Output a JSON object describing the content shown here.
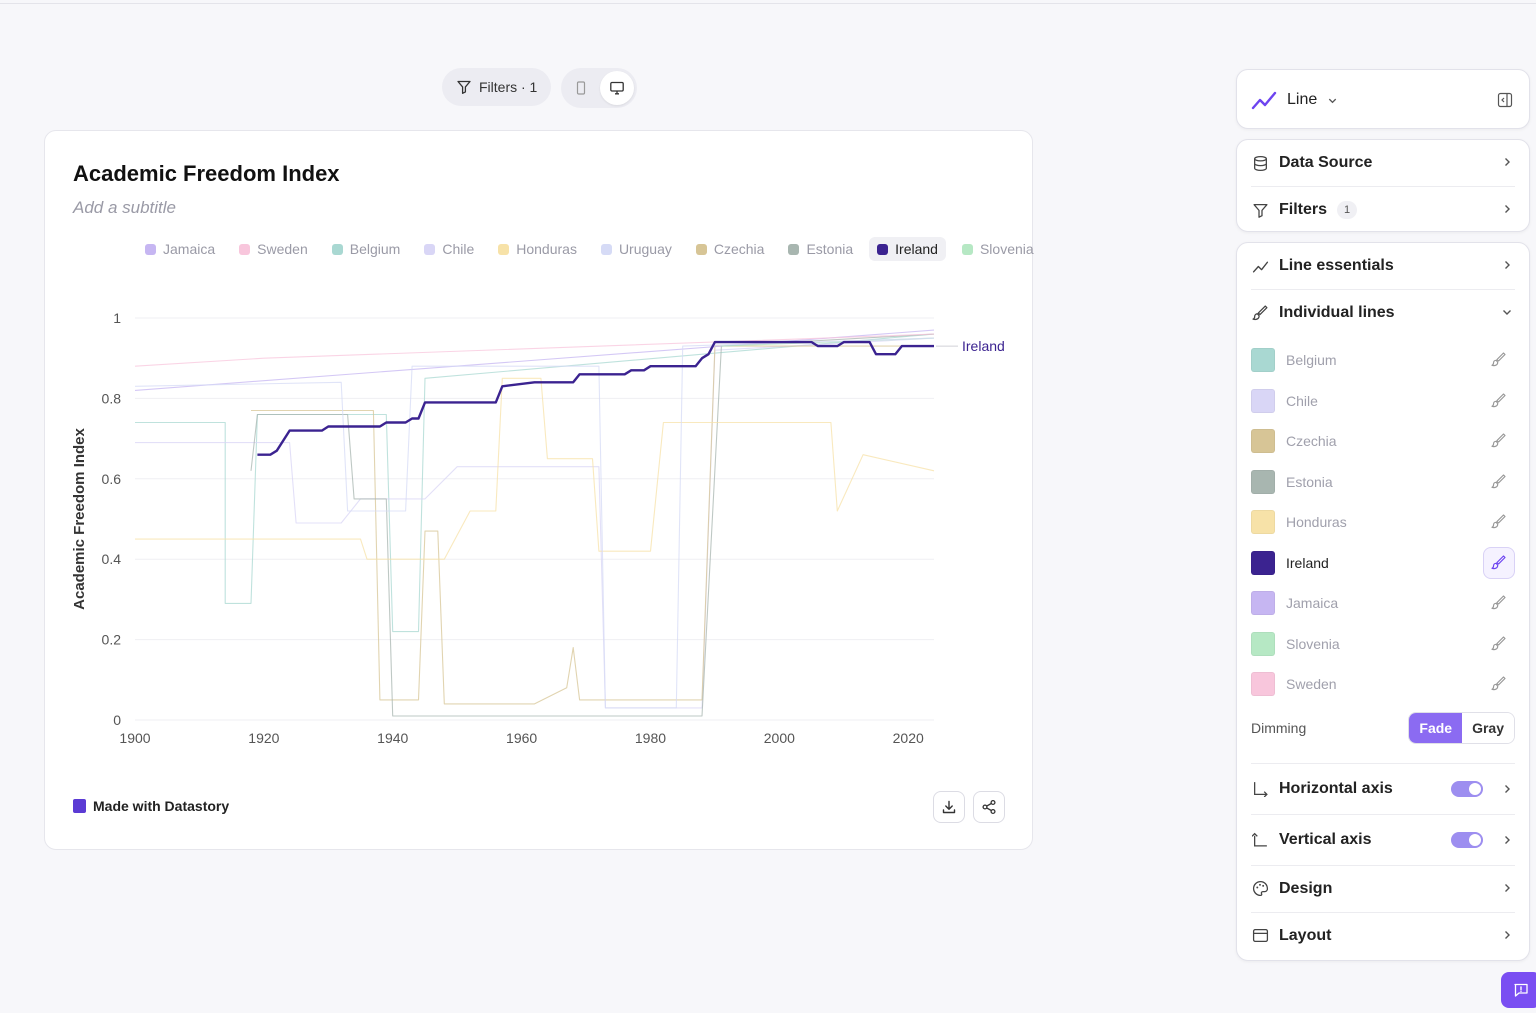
{
  "toolbar": {
    "filters_label": "Filters · 1"
  },
  "chart": {
    "title": "Academic Freedom Index",
    "subtitle_placeholder": "Add a subtitle",
    "footer_brand": "Made with Datastory"
  },
  "legend": [
    {
      "name": "Jamaica",
      "color": "#c6b6f2",
      "active": false
    },
    {
      "name": "Sweden",
      "color": "#f8c6dc",
      "active": false
    },
    {
      "name": "Belgium",
      "color": "#a9d8d2",
      "active": false
    },
    {
      "name": "Chile",
      "color": "#d9d6f6",
      "active": false
    },
    {
      "name": "Honduras",
      "color": "#f7e2a8",
      "active": false
    },
    {
      "name": "Uruguay",
      "color": "#d6dbf6",
      "active": false
    },
    {
      "name": "Czechia",
      "color": "#d7c596",
      "active": false
    },
    {
      "name": "Estonia",
      "color": "#a8b6b0",
      "active": false
    },
    {
      "name": "Ireland",
      "color": "#3b2390",
      "active": true
    },
    {
      "name": "Slovenia",
      "color": "#b6e8c4",
      "active": false
    }
  ],
  "chart_data": {
    "type": "line",
    "title": "Academic Freedom Index",
    "ylabel": "Academic Freedom Index",
    "xlabel": "",
    "xlim": [
      1900,
      2024
    ],
    "ylim": [
      0,
      1
    ],
    "x_ticks": [
      1900,
      1920,
      1940,
      1960,
      1980,
      2000,
      2020
    ],
    "y_ticks": [
      0,
      0.2,
      0.4,
      0.6,
      0.8,
      1
    ],
    "y_tick_labels": [
      "0",
      "0.2",
      "0.4",
      "0.6",
      "0.8",
      "1"
    ],
    "highlight_label": "Ireland",
    "series": [
      {
        "name": "Ireland",
        "color": "#3b2390",
        "highlight": true,
        "points": [
          [
            1919,
            0.66
          ],
          [
            1921,
            0.66
          ],
          [
            1922,
            0.67
          ],
          [
            1924,
            0.72
          ],
          [
            1929,
            0.72
          ],
          [
            1930,
            0.73
          ],
          [
            1938,
            0.73
          ],
          [
            1939,
            0.74
          ],
          [
            1942,
            0.74
          ],
          [
            1943,
            0.75
          ],
          [
            1944,
            0.75
          ],
          [
            1945,
            0.79
          ],
          [
            1956,
            0.79
          ],
          [
            1957,
            0.83
          ],
          [
            1962,
            0.84
          ],
          [
            1968,
            0.84
          ],
          [
            1969,
            0.86
          ],
          [
            1976,
            0.86
          ],
          [
            1977,
            0.87
          ],
          [
            1979,
            0.87
          ],
          [
            1980,
            0.88
          ],
          [
            1987,
            0.88
          ],
          [
            1988,
            0.9
          ],
          [
            1989,
            0.91
          ],
          [
            1990,
            0.94
          ],
          [
            2005,
            0.94
          ],
          [
            2006,
            0.93
          ],
          [
            2009,
            0.93
          ],
          [
            2010,
            0.94
          ],
          [
            2014,
            0.94
          ],
          [
            2015,
            0.91
          ],
          [
            2018,
            0.91
          ],
          [
            2019,
            0.93
          ],
          [
            2024,
            0.93
          ]
        ]
      },
      {
        "name": "Belgium",
        "color": "#a9d8d2",
        "highlight": false,
        "points": [
          [
            1900,
            0.74
          ],
          [
            1914,
            0.74
          ],
          [
            1914,
            0.29
          ],
          [
            1918,
            0.29
          ],
          [
            1919,
            0.76
          ],
          [
            1939,
            0.76
          ],
          [
            1940,
            0.22
          ],
          [
            1944,
            0.22
          ],
          [
            1945,
            0.85
          ],
          [
            2024,
            0.96
          ]
        ]
      },
      {
        "name": "Chile",
        "color": "#d9d6f6",
        "highlight": false,
        "points": [
          [
            1900,
            0.69
          ],
          [
            1924,
            0.69
          ],
          [
            1925,
            0.49
          ],
          [
            1932,
            0.49
          ],
          [
            1935,
            0.55
          ],
          [
            1945,
            0.55
          ],
          [
            1950,
            0.63
          ],
          [
            1972,
            0.63
          ],
          [
            1973,
            0.03
          ],
          [
            1988,
            0.03
          ],
          [
            1990,
            0.92
          ],
          [
            2024,
            0.95
          ]
        ]
      },
      {
        "name": "Czechia",
        "color": "#d7c596",
        "highlight": false,
        "points": [
          [
            1918,
            0.77
          ],
          [
            1937,
            0.77
          ],
          [
            1938,
            0.05
          ],
          [
            1944,
            0.05
          ],
          [
            1945,
            0.47
          ],
          [
            1947,
            0.47
          ],
          [
            1948,
            0.04
          ],
          [
            1962,
            0.04
          ],
          [
            1967,
            0.08
          ],
          [
            1968,
            0.18
          ],
          [
            1969,
            0.05
          ],
          [
            1988,
            0.05
          ],
          [
            1990,
            0.93
          ],
          [
            2024,
            0.93
          ]
        ]
      },
      {
        "name": "Estonia",
        "color": "#a8b6b0",
        "highlight": false,
        "points": [
          [
            1918,
            0.62
          ],
          [
            1919,
            0.76
          ],
          [
            1933,
            0.76
          ],
          [
            1934,
            0.55
          ],
          [
            1939,
            0.55
          ],
          [
            1940,
            0.01
          ],
          [
            1988,
            0.01
          ],
          [
            1991,
            0.93
          ],
          [
            2024,
            0.96
          ]
        ]
      },
      {
        "name": "Honduras",
        "color": "#f7e2a8",
        "highlight": false,
        "points": [
          [
            1900,
            0.45
          ],
          [
            1935,
            0.45
          ],
          [
            1936,
            0.4
          ],
          [
            1948,
            0.4
          ],
          [
            1952,
            0.52
          ],
          [
            1956,
            0.52
          ],
          [
            1957,
            0.85
          ],
          [
            1963,
            0.85
          ],
          [
            1964,
            0.65
          ],
          [
            1971,
            0.65
          ],
          [
            1972,
            0.42
          ],
          [
            1980,
            0.42
          ],
          [
            1982,
            0.74
          ],
          [
            2008,
            0.74
          ],
          [
            2009,
            0.52
          ],
          [
            2013,
            0.66
          ],
          [
            2024,
            0.62
          ]
        ]
      },
      {
        "name": "Jamaica",
        "color": "#c6b6f2",
        "highlight": false,
        "points": [
          [
            1900,
            0.82
          ],
          [
            2024,
            0.97
          ]
        ]
      },
      {
        "name": "Slovenia",
        "color": "#b6e8c4",
        "highlight": false,
        "points": [
          [
            1991,
            0.93
          ],
          [
            2024,
            0.95
          ]
        ]
      },
      {
        "name": "Sweden",
        "color": "#f8c6dc",
        "highlight": false,
        "points": [
          [
            1900,
            0.88
          ],
          [
            1920,
            0.9
          ],
          [
            2024,
            0.96
          ]
        ]
      },
      {
        "name": "Uruguay",
        "color": "#d6dbf6",
        "highlight": false,
        "points": [
          [
            1900,
            0.83
          ],
          [
            1932,
            0.84
          ],
          [
            1933,
            0.52
          ],
          [
            1942,
            0.52
          ],
          [
            1943,
            0.88
          ],
          [
            1972,
            0.88
          ],
          [
            1973,
            0.03
          ],
          [
            1984,
            0.03
          ],
          [
            1985,
            0.93
          ],
          [
            2024,
            0.95
          ]
        ]
      }
    ]
  },
  "panel": {
    "chart_type": "Line",
    "data_source": "Data Source",
    "filters": "Filters",
    "filters_count": "1",
    "line_essentials": "Line essentials",
    "individual_lines": "Individual lines",
    "lines": [
      {
        "name": "Belgium",
        "color": "#a9d8d2",
        "active": false
      },
      {
        "name": "Chile",
        "color": "#d9d6f6",
        "active": false
      },
      {
        "name": "Czechia",
        "color": "#d7c596",
        "active": false
      },
      {
        "name": "Estonia",
        "color": "#a8b6b0",
        "active": false
      },
      {
        "name": "Honduras",
        "color": "#f7e2a8",
        "active": false
      },
      {
        "name": "Ireland",
        "color": "#3b2390",
        "active": true
      },
      {
        "name": "Jamaica",
        "color": "#c6b6f2",
        "active": false
      },
      {
        "name": "Slovenia",
        "color": "#b6e8c4",
        "active": false
      },
      {
        "name": "Sweden",
        "color": "#f8c6dc",
        "active": false
      }
    ],
    "dimming_label": "Dimming",
    "dimming_fade": "Fade",
    "dimming_gray": "Gray",
    "horizontal_axis": "Horizontal axis",
    "vertical_axis": "Vertical axis",
    "design": "Design",
    "layout": "Layout"
  }
}
